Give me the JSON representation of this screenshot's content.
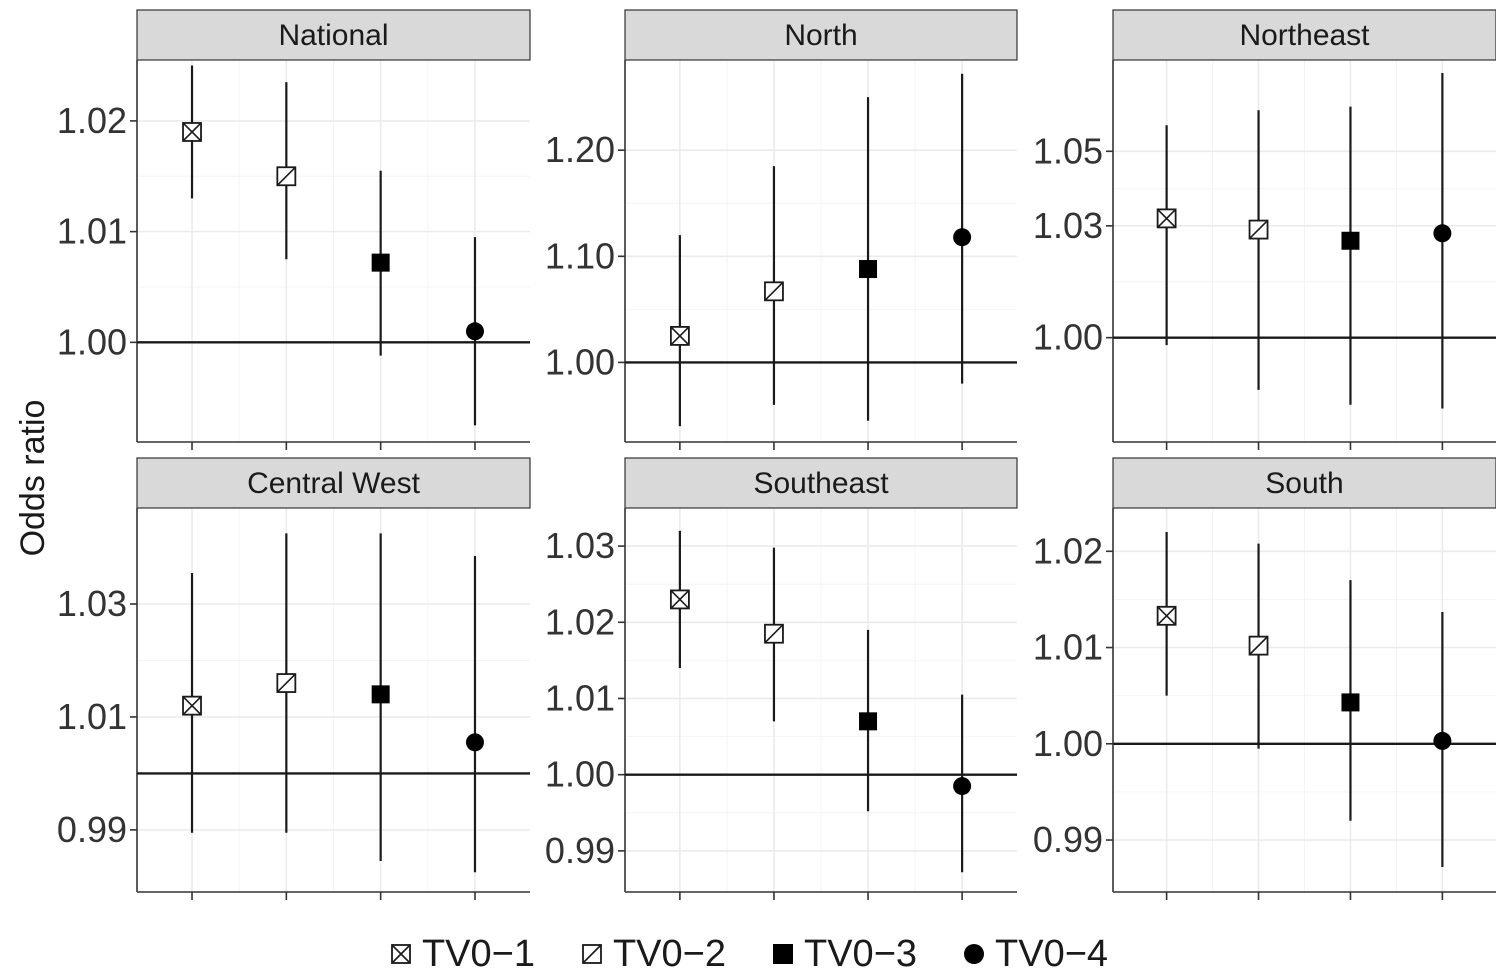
{
  "ylabel": "Odds ratio",
  "legend": [
    {
      "label": "TV0−1",
      "shape": "square-cross",
      "icon": "square-cross-icon"
    },
    {
      "label": "TV0−2",
      "shape": "square-diag",
      "icon": "square-triangle-icon"
    },
    {
      "label": "TV0−3",
      "shape": "filled-square",
      "icon": "filled-square-icon"
    },
    {
      "label": "TV0−4",
      "shape": "filled-circle",
      "icon": "filled-circle-icon"
    }
  ],
  "chart_data": [
    {
      "type": "scatter",
      "title": "National",
      "categories": [
        "TV0−1",
        "TV0−2",
        "TV0−3",
        "TV0−4"
      ],
      "series": [
        {
          "name": "TV0−1",
          "value": 1.019,
          "ci": [
            1.013,
            1.025
          ]
        },
        {
          "name": "TV0−2",
          "value": 1.015,
          "ci": [
            1.0075,
            1.0235
          ]
        },
        {
          "name": "TV0−3",
          "value": 1.0072,
          "ci": [
            0.9988,
            1.0155
          ]
        },
        {
          "name": "TV0−4",
          "value": 1.001,
          "ci": [
            0.9925,
            1.0095
          ]
        }
      ],
      "ylim": [
        0.991,
        1.0255
      ],
      "yticks": [
        {
          "value": 1.0,
          "label": "1.00"
        },
        {
          "value": 1.01,
          "label": "1.01"
        },
        {
          "value": 1.02,
          "label": "1.02"
        }
      ],
      "reference_line": 1.0
    },
    {
      "type": "scatter",
      "title": "North",
      "categories": [
        "TV0−1",
        "TV0−2",
        "TV0−3",
        "TV0−4"
      ],
      "series": [
        {
          "name": "TV0−1",
          "value": 1.025,
          "ci": [
            0.94,
            1.12
          ]
        },
        {
          "name": "TV0−2",
          "value": 1.067,
          "ci": [
            0.96,
            1.185
          ]
        },
        {
          "name": "TV0−3",
          "value": 1.088,
          "ci": [
            0.945,
            1.25
          ]
        },
        {
          "name": "TV0−4",
          "value": 1.118,
          "ci": [
            0.98,
            1.272
          ]
        }
      ],
      "ylim": [
        0.925,
        1.285
      ],
      "yticks": [
        {
          "value": 1.0,
          "label": "1.00"
        },
        {
          "value": 1.1,
          "label": "1.10"
        },
        {
          "value": 1.2,
          "label": "1.20"
        }
      ],
      "reference_line": 1.0
    },
    {
      "type": "scatter",
      "title": "Northeast",
      "categories": [
        "TV0−1",
        "TV0−2",
        "TV0−3",
        "TV0−4"
      ],
      "series": [
        {
          "name": "TV0−1",
          "value": 1.032,
          "ci": [
            0.998,
            1.057
          ]
        },
        {
          "name": "TV0−2",
          "value": 1.029,
          "ci": [
            0.986,
            1.061
          ]
        },
        {
          "name": "TV0−3",
          "value": 1.026,
          "ci": [
            0.982,
            1.062
          ]
        },
        {
          "name": "TV0−4",
          "value": 1.028,
          "ci": [
            0.981,
            1.071
          ]
        }
      ],
      "ylim": [
        0.972,
        1.0745
      ],
      "yticks": [
        {
          "value": 1.0,
          "label": "1.00"
        },
        {
          "value": 1.03,
          "label": "1.03"
        },
        {
          "value": 1.05,
          "label": "1.05"
        }
      ],
      "reference_line": 1.0
    },
    {
      "type": "scatter",
      "title": "Central West",
      "categories": [
        "TV0−1",
        "TV0−2",
        "TV0−3",
        "TV0−4"
      ],
      "series": [
        {
          "name": "TV0−1",
          "value": 1.012,
          "ci": [
            0.9895,
            1.0355
          ]
        },
        {
          "name": "TV0−2",
          "value": 1.016,
          "ci": [
            0.9895,
            1.0425
          ]
        },
        {
          "name": "TV0−3",
          "value": 1.014,
          "ci": [
            0.9845,
            1.0425
          ]
        },
        {
          "name": "TV0−4",
          "value": 1.0055,
          "ci": [
            0.9825,
            1.0385
          ]
        }
      ],
      "ylim": [
        0.979,
        1.047
      ],
      "yticks": [
        {
          "value": 0.99,
          "label": "0.99"
        },
        {
          "value": 1.01,
          "label": "1.01"
        },
        {
          "value": 1.03,
          "label": "1.03"
        }
      ],
      "reference_line": 1.0
    },
    {
      "type": "scatter",
      "title": "Southeast",
      "categories": [
        "TV0−1",
        "TV0−2",
        "TV0−3",
        "TV0−4"
      ],
      "series": [
        {
          "name": "TV0−1",
          "value": 1.023,
          "ci": [
            1.014,
            1.032
          ]
        },
        {
          "name": "TV0−2",
          "value": 1.0185,
          "ci": [
            1.007,
            1.0298
          ]
        },
        {
          "name": "TV0−3",
          "value": 1.007,
          "ci": [
            0.9952,
            1.019
          ]
        },
        {
          "name": "TV0−4",
          "value": 0.9985,
          "ci": [
            0.9872,
            1.0105
          ]
        }
      ],
      "ylim": [
        0.9846,
        1.035
      ],
      "yticks": [
        {
          "value": 0.99,
          "label": "0.99"
        },
        {
          "value": 1.0,
          "label": "1.00"
        },
        {
          "value": 1.01,
          "label": "1.01"
        },
        {
          "value": 1.02,
          "label": "1.02"
        },
        {
          "value": 1.03,
          "label": "1.03"
        }
      ],
      "reference_line": 1.0
    },
    {
      "type": "scatter",
      "title": "South",
      "categories": [
        "TV0−1",
        "TV0−2",
        "TV0−3",
        "TV0−4"
      ],
      "series": [
        {
          "name": "TV0−1",
          "value": 1.0133,
          "ci": [
            1.005,
            1.022
          ]
        },
        {
          "name": "TV0−2",
          "value": 1.0102,
          "ci": [
            0.9995,
            1.0208
          ]
        },
        {
          "name": "TV0−3",
          "value": 1.0043,
          "ci": [
            0.992,
            1.017
          ]
        },
        {
          "name": "TV0−4",
          "value": 1.0003,
          "ci": [
            0.9872,
            1.0137
          ]
        }
      ],
      "ylim": [
        0.9846,
        1.0245
      ],
      "yticks": [
        {
          "value": 0.99,
          "label": "0.99"
        },
        {
          "value": 1.0,
          "label": "1.00"
        },
        {
          "value": 1.01,
          "label": "1.01"
        },
        {
          "value": 1.02,
          "label": "1.02"
        }
      ],
      "reference_line": 1.0
    }
  ]
}
